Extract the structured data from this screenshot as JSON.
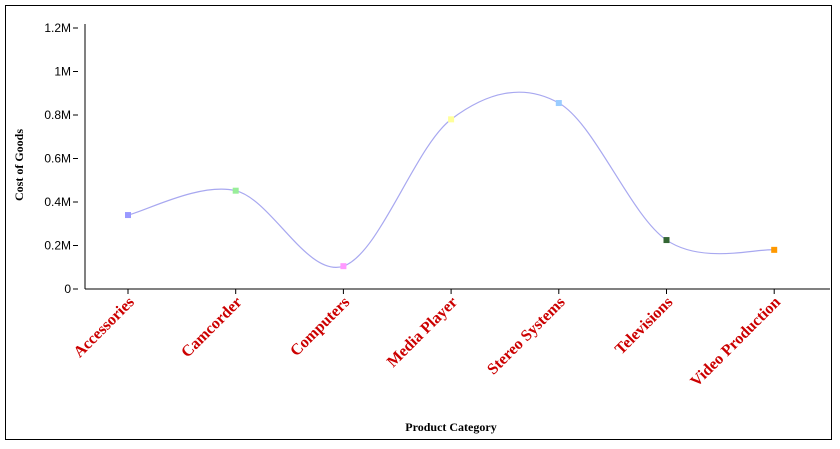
{
  "chart_data": {
    "type": "line",
    "smooth": true,
    "xlabel": "Product Category",
    "ylabel": "Cost of Goods",
    "ylim": [
      0,
      1200000
    ],
    "yticks": [
      {
        "value": 0,
        "label": "0"
      },
      {
        "value": 200000,
        "label": "0.2M"
      },
      {
        "value": 400000,
        "label": "0.4M"
      },
      {
        "value": 600000,
        "label": "0.6M"
      },
      {
        "value": 800000,
        "label": "0.8M"
      },
      {
        "value": 1000000,
        "label": "1M"
      },
      {
        "value": 1200000,
        "label": "1.2M"
      }
    ],
    "categories": [
      "Accessories",
      "Camcorder",
      "Computers",
      "Media Player",
      "Stereo Systems",
      "Televisions",
      "Video Production"
    ],
    "series": [
      {
        "values": [
          340000,
          452000,
          105000,
          780000,
          855000,
          225000,
          180000
        ],
        "line_color": "#a8a8f0",
        "marker_colors": [
          "#9999ff",
          "#99ee99",
          "#ff99ff",
          "#ffff99",
          "#99ccff",
          "#336633",
          "#ff9900"
        ]
      }
    ],
    "category_label_color": "#cc0000",
    "grid": false,
    "legend": "none"
  }
}
